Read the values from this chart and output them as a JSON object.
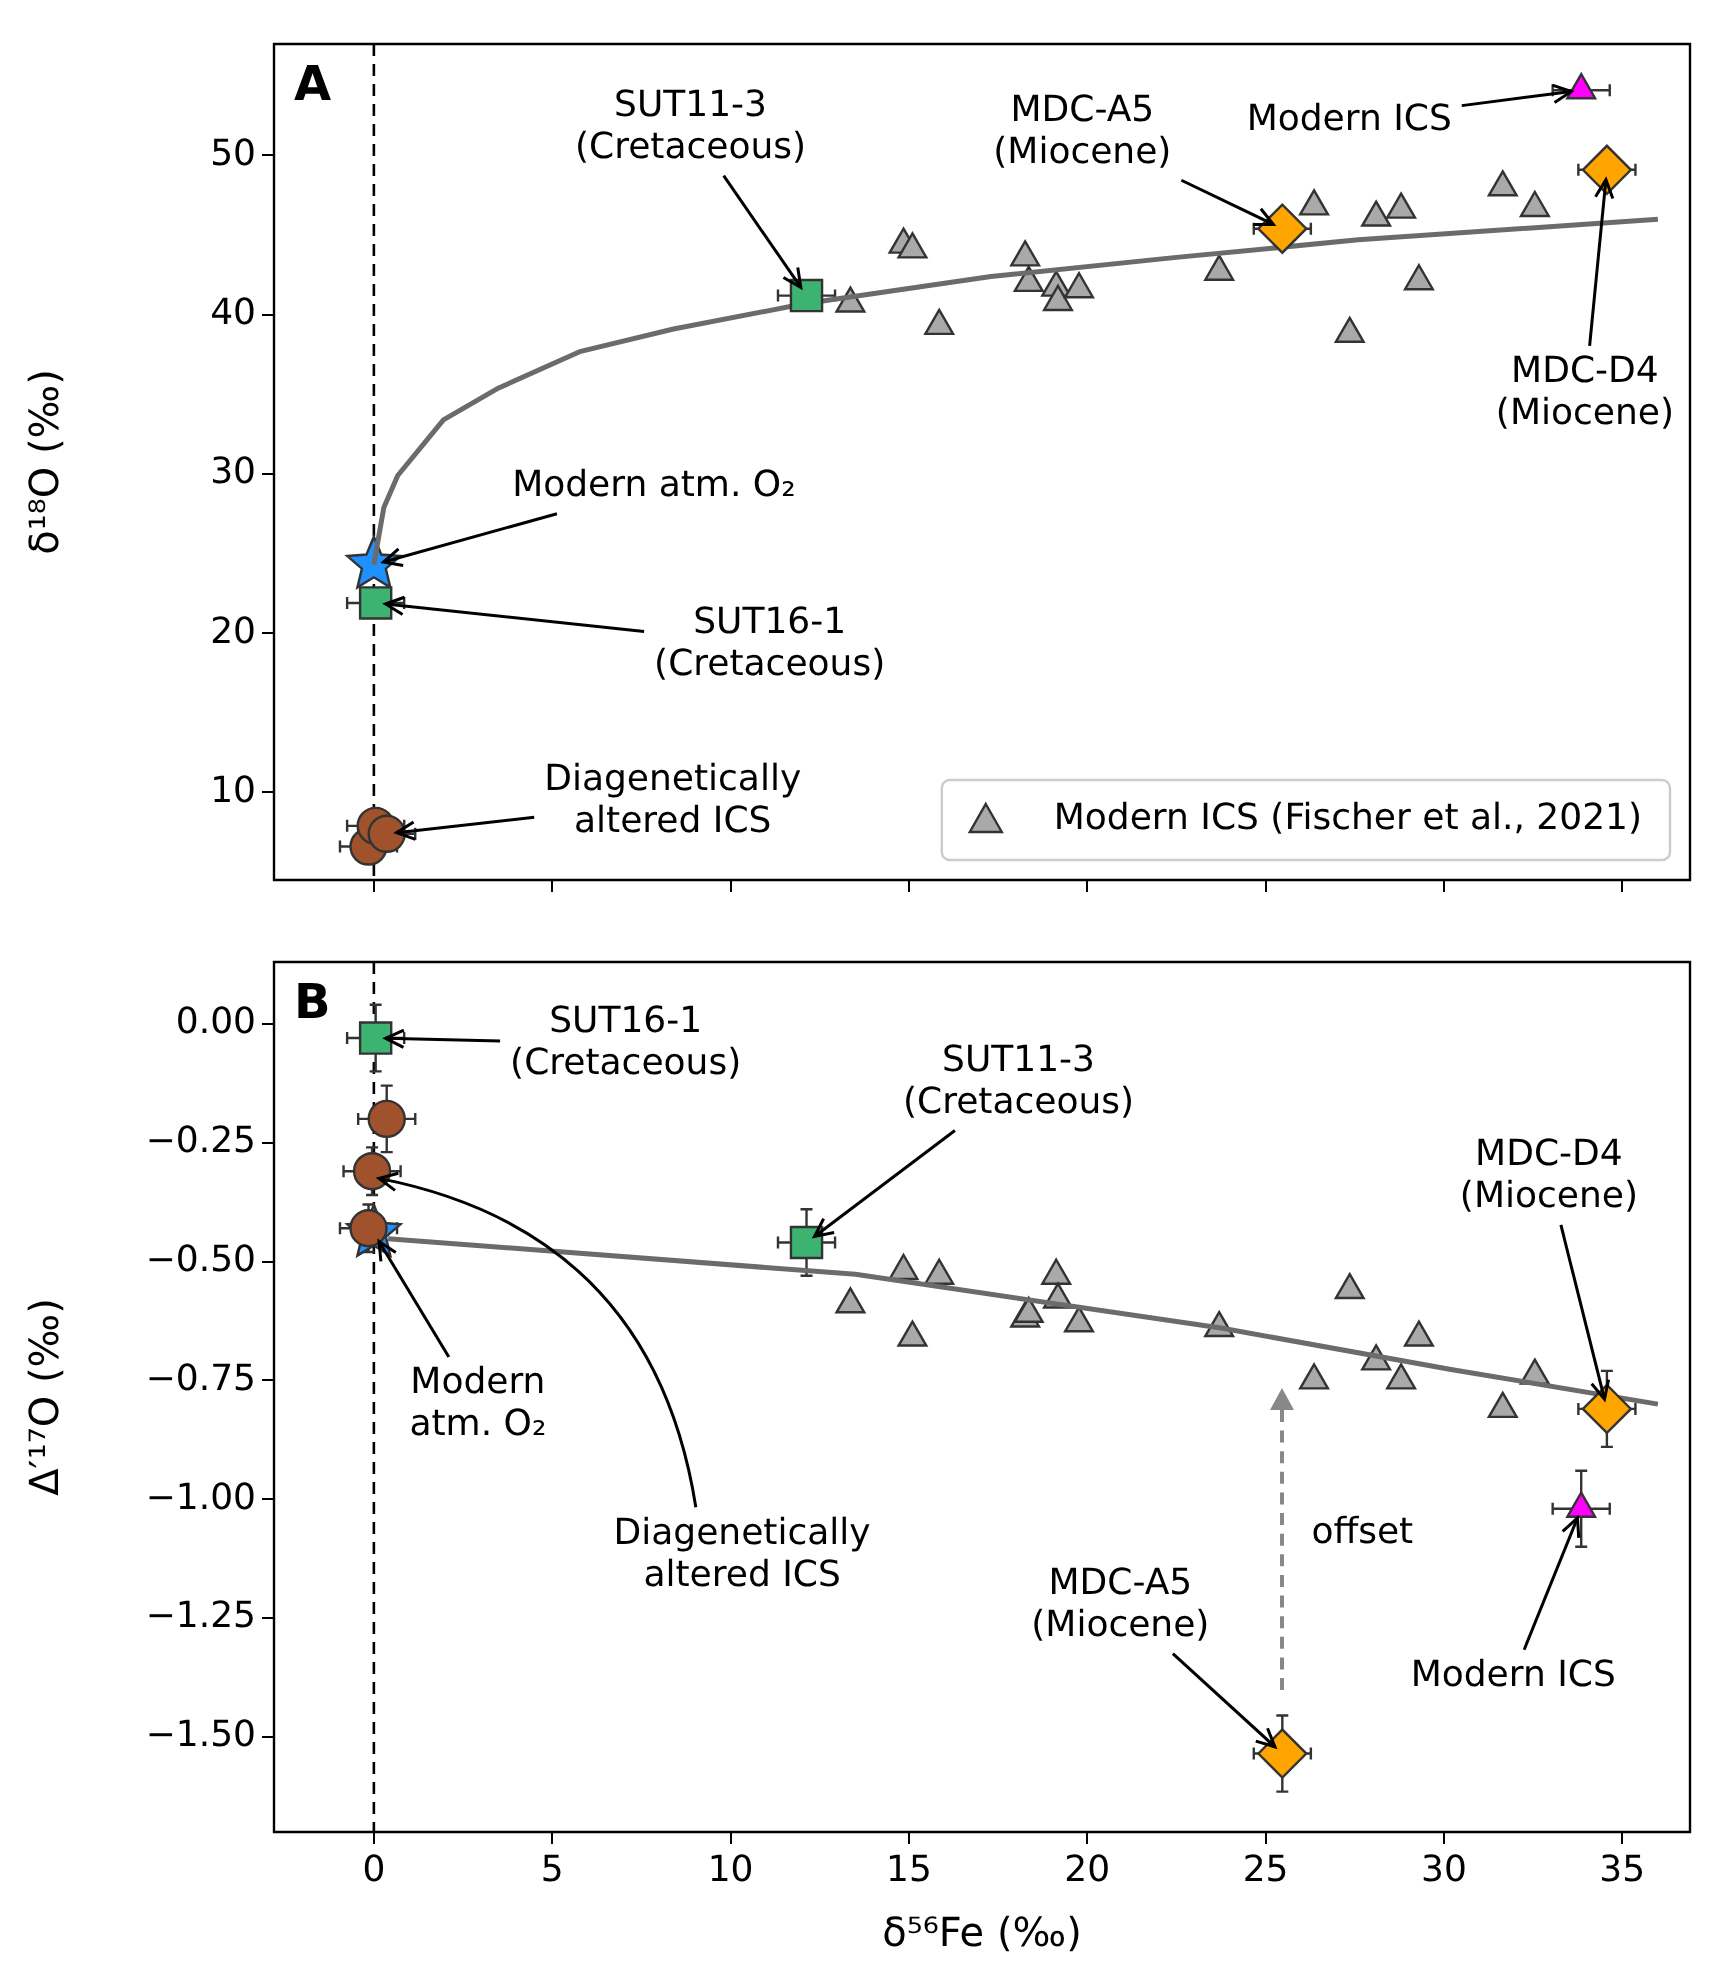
{
  "chart_data": [
    {
      "type": "scatter",
      "title": "A",
      "ylabel": "δ¹⁸O (‰)",
      "xlim": [
        -2.8,
        36.9
      ],
      "ylim": [
        4.5,
        57
      ],
      "xticks": [
        0,
        5,
        10,
        15,
        20,
        25,
        30,
        35
      ],
      "yticks": [
        10,
        20,
        30,
        40,
        50
      ],
      "tick_labels": "y",
      "legend": "bottom right",
      "ref_lines": [
        {
          "axis": "x",
          "value": 0,
          "color": "#000000",
          "line_style": "dashed"
        }
      ],
      "series": [
        {
          "name": "Modern ICS (Fischer et al., 2021)",
          "color": "#a9a9a9",
          "marker": "triangle",
          "x": [
            13.36,
            14.85,
            15.1,
            15.85,
            18.26,
            18.36,
            19.13,
            19.18,
            19.77,
            23.7,
            26.36,
            27.36,
            28.1,
            28.8,
            29.3,
            31.65,
            32.55
          ],
          "values": [
            40.7,
            44.4,
            44.1,
            39.3,
            43.6,
            42.0,
            41.7,
            40.8,
            41.6,
            42.7,
            46.8,
            38.8,
            46.1,
            46.6,
            42.1,
            48.0,
            46.7
          ]
        },
        {
          "type": "line",
          "color": "#6b6b6b",
          "marker": "none",
          "x": [
            0,
            0.1,
            0.28,
            0.67,
            1.95,
            3.5,
            5.8,
            8.4,
            12.1,
            17.3,
            22.5,
            27.6,
            36
          ],
          "values": [
            24.3,
            25.6,
            27.9,
            29.9,
            33.4,
            35.4,
            37.7,
            39.1,
            40.7,
            42.4,
            43.6,
            44.7,
            46.0
          ]
        },
        {
          "color": "#1e90ff",
          "marker": "star",
          "x": [
            0
          ],
          "values": [
            24.3
          ]
        },
        {
          "color": "#3cb371",
          "marker": "square",
          "x": [
            0.05,
            12.13
          ],
          "values": [
            21.9,
            41.2
          ],
          "xerrors": [
            0.8,
            0.8
          ]
        },
        {
          "color": "#a0522d",
          "marker": "circle",
          "x": [
            -0.15,
            0.05,
            0.36
          ],
          "values": [
            6.6,
            7.9,
            7.4
          ],
          "xerrors": [
            0.8,
            0.8,
            0.8
          ]
        },
        {
          "color": "#ffa500",
          "marker": "diamond",
          "x": [
            25.47,
            34.57
          ],
          "values": [
            45.4,
            49.1
          ],
          "xerrors": [
            0.8,
            0.8
          ]
        },
        {
          "color": "#ff00ff",
          "marker": "triangle",
          "x": [
            33.85
          ],
          "values": [
            54.1
          ],
          "xerrors": [
            0.8
          ]
        }
      ],
      "annotations": [
        {
          "text": "SUT11-3\n(Cretaceous)",
          "x": 12.13,
          "y": 41.2
        },
        {
          "text": "MDC-A5\n(Miocene)",
          "x": 25.47,
          "y": 45.4
        },
        {
          "text": "Modern ICS",
          "x": 33.85,
          "y": 54.1
        },
        {
          "text": "MDC-D4\n(Miocene)",
          "x": 34.57,
          "y": 49.1
        },
        {
          "text": "Modern atm. O₂",
          "x": 0,
          "y": 24.3
        },
        {
          "text": "SUT16-1\n(Cretaceous)",
          "x": 0.05,
          "y": 21.9
        },
        {
          "text": "Diagenetically\naltered ICS",
          "x": 0.36,
          "y": 7.4
        }
      ]
    },
    {
      "type": "scatter",
      "title": "B",
      "xlabel": "δ⁵⁶Fe (‰)",
      "ylabel": "Δ′¹⁷O (‰)",
      "xlim": [
        -2.8,
        36.9
      ],
      "ylim": [
        -1.7,
        0.13
      ],
      "xticks": [
        0,
        5,
        10,
        15,
        20,
        25,
        30,
        35
      ],
      "yticks": [
        {
          "value": 0,
          "label": "0.00"
        },
        {
          "value": -0.25,
          "label": "−0.25"
        },
        {
          "value": -0.5,
          "label": "−0.50"
        },
        {
          "value": -0.75,
          "label": "−0.75"
        },
        {
          "value": -1,
          "label": "−1.00"
        },
        {
          "value": -1.25,
          "label": "−1.25"
        },
        {
          "value": -1.5,
          "label": "−1.50"
        }
      ],
      "ref_lines": [
        {
          "axis": "x",
          "value": 0,
          "color": "#000000",
          "line_style": "dashed"
        }
      ],
      "series": [
        {
          "color": "#a9a9a9",
          "marker": "triangle",
          "x": [
            13.36,
            14.85,
            15.1,
            15.85,
            18.26,
            18.36,
            19.13,
            19.18,
            19.77,
            23.7,
            26.36,
            27.36,
            28.1,
            28.8,
            29.3,
            31.65,
            32.55
          ],
          "values": [
            -0.59,
            -0.52,
            -0.66,
            -0.53,
            -0.62,
            -0.61,
            -0.53,
            -0.58,
            -0.63,
            -0.64,
            -0.75,
            -0.56,
            -0.71,
            -0.75,
            -0.66,
            -0.81,
            -0.74
          ]
        },
        {
          "type": "line",
          "color": "#6b6b6b",
          "marker": "none",
          "x": [
            0.4,
            13.5,
            23.75,
            30.2,
            36
          ],
          "values": [
            -0.452,
            -0.527,
            -0.64,
            -0.727,
            -0.8
          ]
        },
        {
          "color": "#1e90ff",
          "marker": "star",
          "x": [
            0
          ],
          "values": [
            -0.44
          ]
        },
        {
          "color": "#3cb371",
          "marker": "square",
          "x": [
            0.05,
            12.13
          ],
          "values": [
            -0.03,
            -0.46
          ],
          "xerrors": [
            0.8,
            0.8
          ],
          "errors": [
            0.07,
            0.07
          ]
        },
        {
          "color": "#a0522d",
          "marker": "circle",
          "x": [
            0.36,
            -0.05,
            -0.15
          ],
          "values": [
            -0.2,
            -0.31,
            -0.43
          ],
          "xerrors": [
            0.8,
            0.8,
            0.8
          ],
          "errors": [
            0.07,
            0.05,
            0.05
          ]
        },
        {
          "color": "#ffa500",
          "marker": "diamond",
          "x": [
            25.47,
            34.57
          ],
          "values": [
            -1.535,
            -0.81
          ],
          "xerrors": [
            0.8,
            0.8
          ],
          "errors": [
            0.08,
            0.08
          ]
        },
        {
          "color": "#ff00ff",
          "marker": "triangle",
          "x": [
            33.85
          ],
          "values": [
            -1.02
          ],
          "xerrors": [
            0.8
          ],
          "errors": [
            0.08
          ]
        }
      ],
      "annotations": [
        {
          "text": "SUT16-1\n(Cretaceous)",
          "x": 0.05,
          "y": -0.03
        },
        {
          "text": "SUT11-3\n(Cretaceous)",
          "x": 12.13,
          "y": -0.46
        },
        {
          "text": "MDC-D4\n(Miocene)",
          "x": 34.57,
          "y": -0.81
        },
        {
          "text": "Modern\natm. O₂",
          "x": 0,
          "y": -0.44
        },
        {
          "text": "Diagenetically\naltered ICS",
          "x": -0.05,
          "y": -0.31
        },
        "offset",
        {
          "text": "MDC-A5\n(Miocene)",
          "x": 25.47,
          "y": -1.535
        },
        {
          "text": "Modern ICS",
          "x": 33.85,
          "y": -1.02
        }
      ]
    }
  ]
}
